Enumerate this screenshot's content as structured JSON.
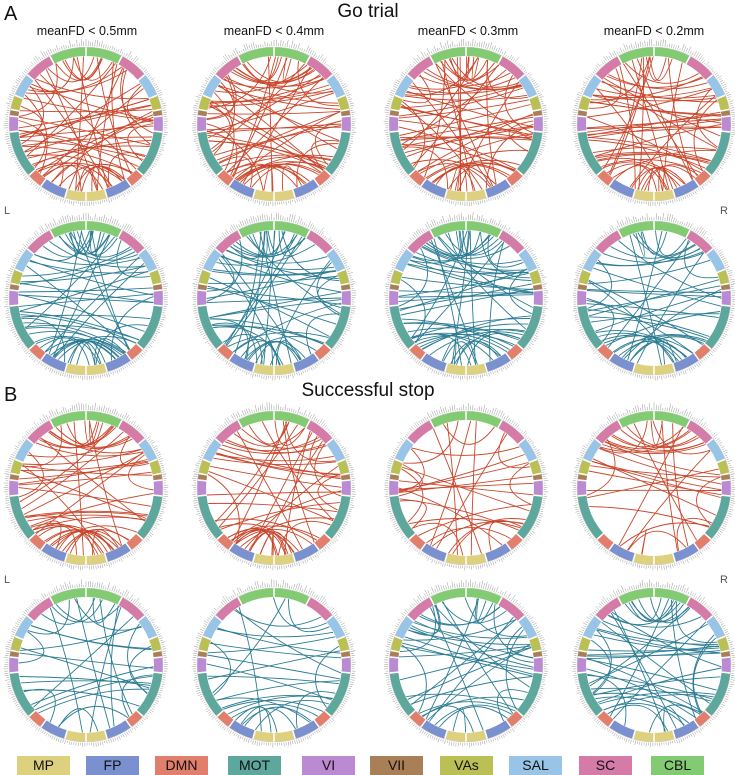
{
  "figure": {
    "panel_A_letter": "A",
    "panel_B_letter": "B",
    "section_A_title": "Go trial",
    "section_B_title": "Successful stop",
    "column_headers": [
      "meanFD < 0.5mm",
      "meanFD < 0.4mm",
      "meanFD < 0.3mm",
      "meanFD < 0.2mm"
    ],
    "side_labels": {
      "left": "L",
      "right": "R"
    }
  },
  "colors": {
    "positive_chord": "#C9472C",
    "negative_chord": "#2B7C93",
    "ring_tick": "#9a9a9a"
  },
  "networks": [
    {
      "key": "MP",
      "label": "MP",
      "color": "#DDD07E"
    },
    {
      "key": "FP",
      "label": "FP",
      "color": "#7B90CF"
    },
    {
      "key": "DMN",
      "label": "DMN",
      "color": "#E27E6C"
    },
    {
      "key": "MOT",
      "label": "MOT",
      "color": "#5EA79C"
    },
    {
      "key": "VI",
      "label": "VI",
      "color": "#BB8AD2"
    },
    {
      "key": "VII",
      "label": "VII",
      "color": "#A97F57"
    },
    {
      "key": "VAs",
      "label": "VAs",
      "color": "#BBC055"
    },
    {
      "key": "SAL",
      "label": "SAL",
      "color": "#98C5E7"
    },
    {
      "key": "SC",
      "label": "SC",
      "color": "#D47BA7"
    },
    {
      "key": "CBL",
      "label": "CBL",
      "color": "#83CB72"
    }
  ],
  "ring_segments_right_half": [
    {
      "net": "CBL",
      "start": 0,
      "end": 28
    },
    {
      "net": "SC",
      "start": 28,
      "end": 50
    },
    {
      "net": "SAL",
      "start": 50,
      "end": 68
    },
    {
      "net": "VAs",
      "start": 68,
      "end": 79
    },
    {
      "net": "VII",
      "start": 79,
      "end": 84
    },
    {
      "net": "VI",
      "start": 84,
      "end": 96
    },
    {
      "net": "MOT",
      "start": 96,
      "end": 132
    },
    {
      "net": "DMN",
      "start": 132,
      "end": 144
    },
    {
      "net": "FP",
      "start": 144,
      "end": 164
    },
    {
      "net": "MP",
      "start": 164,
      "end": 180
    }
  ],
  "panels": [
    {
      "section": "Go trial",
      "condition": "meanFD < 0.5mm",
      "sign": "positive",
      "chords": 62,
      "seed": 11
    },
    {
      "section": "Go trial",
      "condition": "meanFD < 0.4mm",
      "sign": "positive",
      "chords": 66,
      "seed": 23
    },
    {
      "section": "Go trial",
      "condition": "meanFD < 0.3mm",
      "sign": "positive",
      "chords": 64,
      "seed": 37
    },
    {
      "section": "Go trial",
      "condition": "meanFD < 0.2mm",
      "sign": "positive",
      "chords": 58,
      "seed": 41
    },
    {
      "section": "Go trial",
      "condition": "meanFD < 0.5mm",
      "sign": "negative",
      "chords": 56,
      "seed": 53
    },
    {
      "section": "Go trial",
      "condition": "meanFD < 0.4mm",
      "sign": "negative",
      "chords": 58,
      "seed": 61
    },
    {
      "section": "Go trial",
      "condition": "meanFD < 0.3mm",
      "sign": "negative",
      "chords": 60,
      "seed": 71
    },
    {
      "section": "Go trial",
      "condition": "meanFD < 0.2mm",
      "sign": "negative",
      "chords": 44,
      "seed": 83
    },
    {
      "section": "Successful stop",
      "condition": "meanFD < 0.5mm",
      "sign": "positive",
      "chords": 52,
      "seed": 97
    },
    {
      "section": "Successful stop",
      "condition": "meanFD < 0.4mm",
      "sign": "positive",
      "chords": 48,
      "seed": 101
    },
    {
      "section": "Successful stop",
      "condition": "meanFD < 0.3mm",
      "sign": "positive",
      "chords": 30,
      "seed": 113
    },
    {
      "section": "Successful stop",
      "condition": "meanFD < 0.2mm",
      "sign": "positive",
      "chords": 32,
      "seed": 127
    },
    {
      "section": "Successful stop",
      "condition": "meanFD < 0.5mm",
      "sign": "negative",
      "chords": 30,
      "seed": 131
    },
    {
      "section": "Successful stop",
      "condition": "meanFD < 0.4mm",
      "sign": "negative",
      "chords": 28,
      "seed": 139
    },
    {
      "section": "Successful stop",
      "condition": "meanFD < 0.3mm",
      "sign": "negative",
      "chords": 40,
      "seed": 149
    },
    {
      "section": "Successful stop",
      "condition": "meanFD < 0.2mm",
      "sign": "negative",
      "chords": 46,
      "seed": 157
    }
  ],
  "legend": [
    {
      "label": "MP",
      "color": "#DDD07E"
    },
    {
      "label": "FP",
      "color": "#7B90CF"
    },
    {
      "label": "DMN",
      "color": "#E27E6C"
    },
    {
      "label": "MOT",
      "color": "#5EA79C"
    },
    {
      "label": "VI",
      "color": "#BB8AD2"
    },
    {
      "label": "VII",
      "color": "#A97F57"
    },
    {
      "label": "VAs",
      "color": "#BBC055"
    },
    {
      "label": "SAL",
      "color": "#98C5E7"
    },
    {
      "label": "SC",
      "color": "#D47BA7"
    },
    {
      "label": "CBL",
      "color": "#83CB72"
    }
  ]
}
